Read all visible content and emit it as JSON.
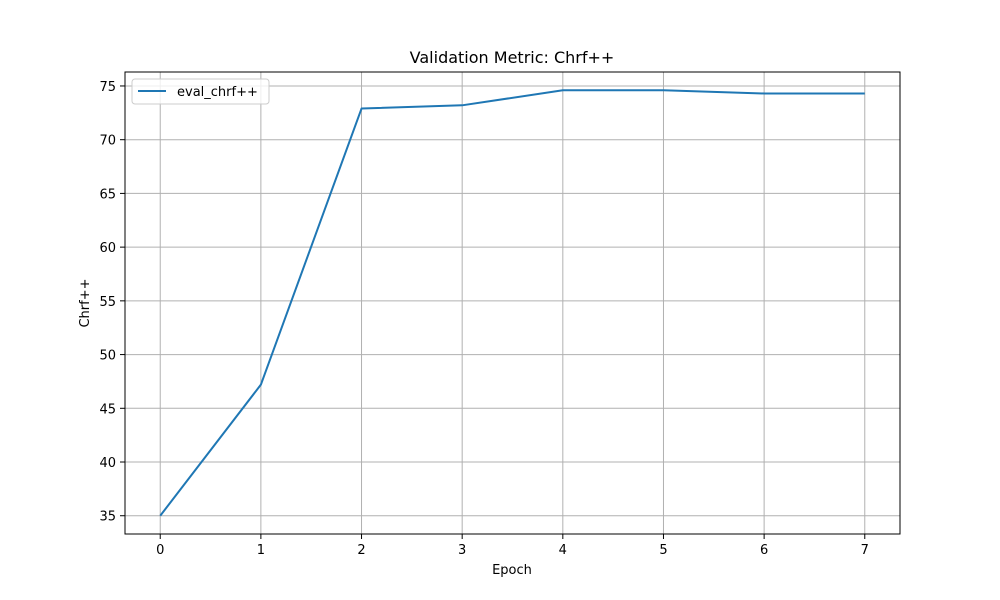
{
  "chart_data": {
    "type": "line",
    "title": "Validation Metric: Chrf++",
    "xlabel": "Epoch",
    "ylabel": "Chrf++",
    "x": [
      0,
      1,
      2,
      3,
      4,
      5,
      6,
      7
    ],
    "series": [
      {
        "name": "eval_chrf++",
        "color": "#1f77b4",
        "values": [
          35.0,
          47.2,
          72.9,
          73.2,
          74.6,
          74.6,
          74.3,
          74.3
        ]
      }
    ],
    "xlim": [
      -0.35,
      7.35
    ],
    "ylim": [
      33.3,
      76.3
    ],
    "xticks": [
      0,
      1,
      2,
      3,
      4,
      5,
      6,
      7
    ],
    "yticks": [
      35,
      40,
      45,
      50,
      55,
      60,
      65,
      70,
      75
    ],
    "grid": true,
    "legend_position": "top-left"
  }
}
